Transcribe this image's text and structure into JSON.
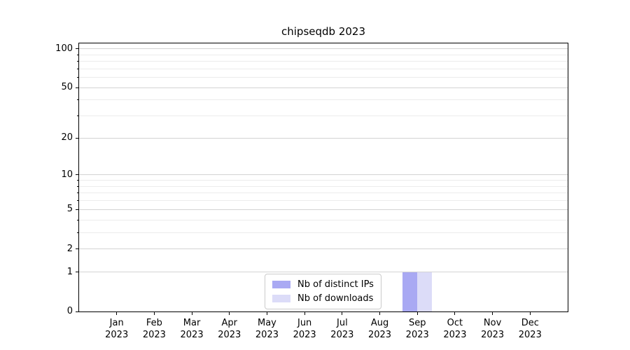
{
  "figure": {
    "background": "#ffffff"
  },
  "chart_data": {
    "type": "bar",
    "title": "chipseqdb 2023",
    "categories": [
      {
        "month": "Jan",
        "year": "2023"
      },
      {
        "month": "Feb",
        "year": "2023"
      },
      {
        "month": "Mar",
        "year": "2023"
      },
      {
        "month": "Apr",
        "year": "2023"
      },
      {
        "month": "May",
        "year": "2023"
      },
      {
        "month": "Jun",
        "year": "2023"
      },
      {
        "month": "Jul",
        "year": "2023"
      },
      {
        "month": "Aug",
        "year": "2023"
      },
      {
        "month": "Sep",
        "year": "2023"
      },
      {
        "month": "Oct",
        "year": "2023"
      },
      {
        "month": "Nov",
        "year": "2023"
      },
      {
        "month": "Dec",
        "year": "2023"
      }
    ],
    "series": [
      {
        "name": "Nb of distinct IPs",
        "color": "#a9a9f3",
        "values": [
          0,
          0,
          0,
          0,
          0,
          0,
          0,
          0,
          1,
          0,
          0,
          0
        ]
      },
      {
        "name": "Nb of downloads",
        "color": "#dcdcf8",
        "values": [
          0,
          0,
          0,
          0,
          0,
          0,
          0,
          0,
          1,
          0,
          0,
          0
        ]
      }
    ],
    "y_axis": {
      "scale": "log1p",
      "ticks": [
        0,
        1,
        2,
        5,
        10,
        20,
        50,
        100
      ],
      "minor_ticks": [
        3,
        4,
        6,
        7,
        8,
        9,
        30,
        40,
        60,
        70,
        80,
        90
      ],
      "max": 110
    },
    "x_axis": {
      "tick_label_year_on_second_line": true
    },
    "legend": {
      "position": "lower center",
      "entries": [
        "Nb of distinct IPs",
        "Nb of downloads"
      ]
    },
    "grid": {
      "enabled": true
    }
  }
}
